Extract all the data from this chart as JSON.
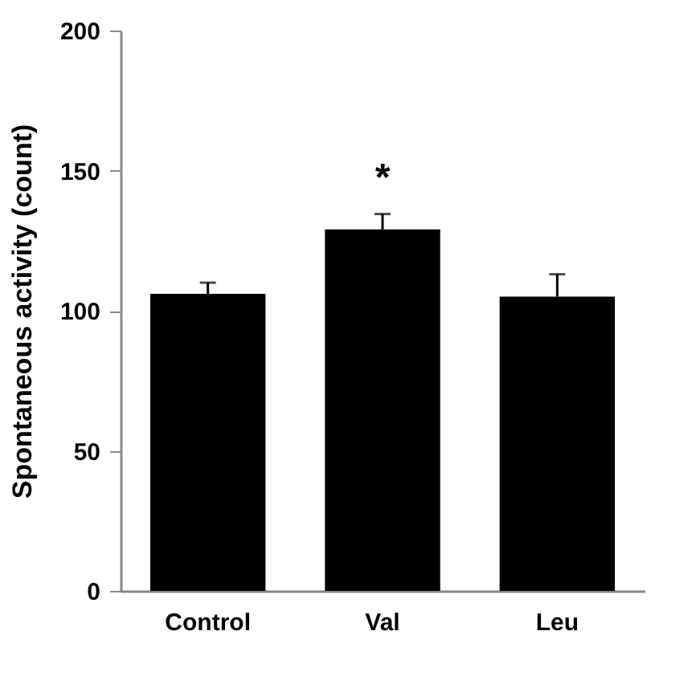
{
  "chart_data": {
    "type": "bar",
    "ylabel": "Spontaneous activity (count)",
    "categories": [
      "Control",
      "Val",
      "Leu"
    ],
    "values": [
      106,
      129,
      105
    ],
    "errors": [
      [
        106,
        110
      ],
      [
        129,
        134.5
      ],
      [
        105,
        113
      ]
    ],
    "color": "#000000",
    "ylim": [
      0,
      200
    ],
    "yticks": [
      0,
      50,
      100,
      150,
      200
    ],
    "grid": false,
    "annotations": [
      {
        "text": "*",
        "x": "Val",
        "y": 134.5
      }
    ]
  }
}
